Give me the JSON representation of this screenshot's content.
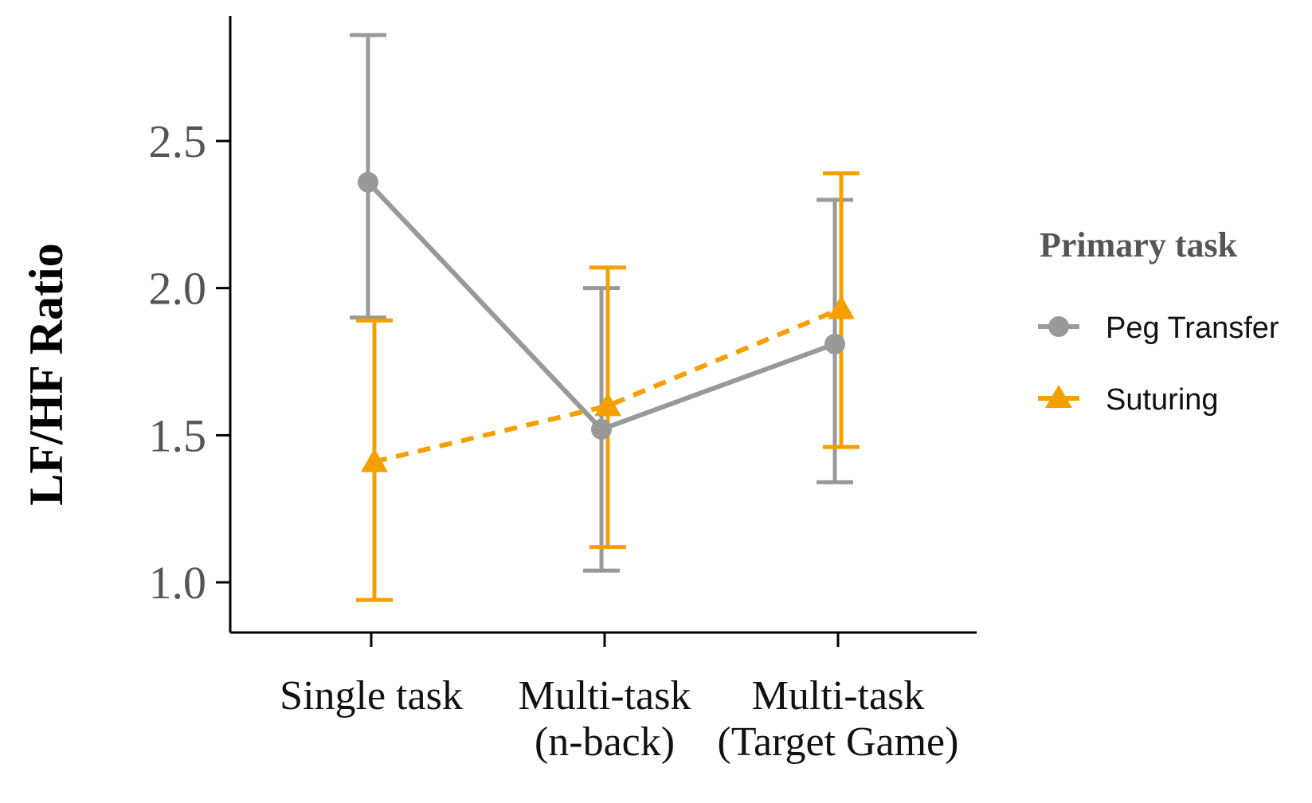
{
  "chart_data": {
    "type": "line",
    "categories": [
      [
        "Single task"
      ],
      [
        "Multi-task",
        "(n-back)"
      ],
      [
        "Multi-task",
        "(Target Game)"
      ]
    ],
    "ylabel": "LF/HF Ratio",
    "ylim": [
      0.85,
      2.95
    ],
    "yticks": [
      "1.0",
      "1.5",
      "2.0",
      "2.5"
    ],
    "legend": {
      "title": "Primary task",
      "placement": "right"
    },
    "series": [
      {
        "name": "Peg Transfer",
        "color": "#999999",
        "marker": "circle",
        "line_style": "solid",
        "values": [
          2.36,
          1.52,
          1.81
        ],
        "error_low": [
          1.9,
          1.04,
          1.34
        ],
        "error_high": [
          2.86,
          2.0,
          2.3
        ]
      },
      {
        "name": "Suturing",
        "color": "#f59f00",
        "marker": "triangle",
        "line_style": "dashed",
        "values": [
          1.41,
          1.6,
          1.93
        ],
        "error_low": [
          0.94,
          1.12,
          1.46
        ],
        "error_high": [
          1.89,
          2.07,
          2.39
        ]
      }
    ]
  }
}
